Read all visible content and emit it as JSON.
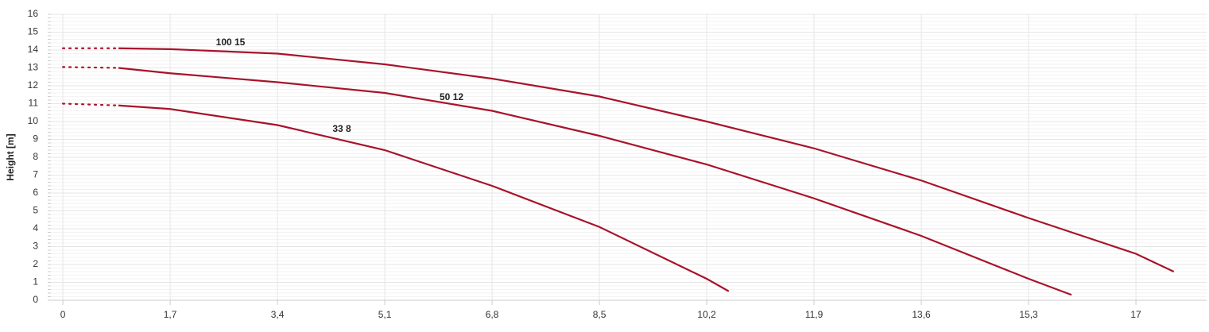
{
  "chart_data": {
    "type": "line",
    "y_label": "Height [m]",
    "xlim": [
      -0.19,
      18.12
    ],
    "ylim": [
      0,
      16
    ],
    "xticks": [
      0,
      {
        "value": 1.7,
        "label": "1,7"
      },
      {
        "value": 3.4,
        "label": "3,4"
      },
      {
        "value": 5.1,
        "label": "5,1"
      },
      {
        "value": 6.8,
        "label": "6,8"
      },
      {
        "value": 8.5,
        "label": "8,5"
      },
      {
        "value": 10.2,
        "label": "10,2"
      },
      {
        "value": 11.9,
        "label": "11,9"
      },
      {
        "value": 13.6,
        "label": "13,6"
      },
      {
        "value": 15.3,
        "label": "15,3"
      },
      17
    ],
    "yticks": [
      0,
      1,
      2,
      3,
      4,
      5,
      6,
      7,
      8,
      9,
      10,
      11,
      12,
      13,
      14,
      15,
      16
    ],
    "grid": true,
    "first_segment_dotted": true,
    "series": [
      {
        "name": "100 15",
        "color": "#a8132b",
        "x": [
          0,
          0.88,
          1.7,
          3.4,
          5.1,
          6.8,
          8.5,
          10.2,
          11.9,
          13.6,
          15.3,
          17,
          17.6
        ],
        "values": [
          14.1,
          14.1,
          14.05,
          13.8,
          13.2,
          12.4,
          11.4,
          10.0,
          8.5,
          6.7,
          4.6,
          2.6,
          1.6
        ]
      },
      {
        "name": "50 12",
        "color": "#a8132b",
        "x": [
          0,
          0.88,
          1.7,
          3.4,
          5.1,
          6.8,
          8.5,
          10.2,
          11.9,
          13.6,
          15.3,
          15.98
        ],
        "values": [
          13.05,
          13.0,
          12.7,
          12.2,
          11.6,
          10.6,
          9.2,
          7.6,
          5.7,
          3.6,
          1.2,
          0.3
        ]
      },
      {
        "name": "33 8",
        "color": "#a8132b",
        "x": [
          0,
          0.88,
          1.7,
          3.4,
          5.1,
          6.8,
          8.5,
          10.2,
          10.55
        ],
        "values": [
          11.0,
          10.9,
          10.7,
          9.8,
          8.4,
          6.4,
          4.1,
          1.2,
          0.5
        ]
      }
    ]
  }
}
